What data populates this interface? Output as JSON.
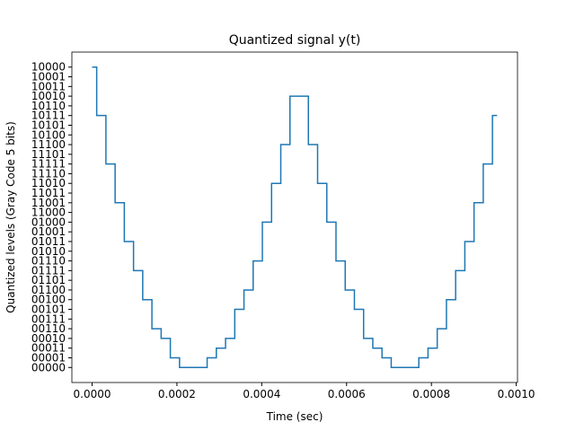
{
  "chart_data": {
    "type": "step",
    "title": "Quantized signal y(t)",
    "xlabel": "Time (sec)",
    "ylabel": "Quantized levels (Gray Code 5 bits)",
    "x": [
      0,
      2.17e-05,
      4.34e-05,
      6.51e-05,
      8.68e-05,
      0.0001085,
      0.0001302,
      0.0001519,
      0.0001736,
      0.0001953,
      0.000217,
      0.0002387,
      0.0002604,
      0.0002821,
      0.0003038,
      0.0003255,
      0.0003472,
      0.0003689,
      0.0003906,
      0.0004123,
      0.000434,
      0.0004557,
      0.0004774,
      0.0004991,
      0.0005208,
      0.0005425,
      0.0005642,
      0.0005859,
      0.0006076,
      0.0006293,
      0.000651,
      0.0006727,
      0.0006944,
      0.0007161,
      0.0007378,
      0.0007595,
      0.0007812,
      0.0008029,
      0.0008246,
      0.0008463,
      0.000868,
      0.0008897,
      0.0009114,
      0.0009331,
      0.0009548
    ],
    "series": [
      {
        "name": "y(t)",
        "color": "#1f77b4",
        "values": [
          31,
          26,
          21,
          17,
          13,
          10,
          7,
          4,
          3,
          1,
          0,
          0,
          0,
          1,
          2,
          3,
          6,
          8,
          11,
          15,
          19,
          23,
          28,
          28,
          23,
          19,
          15,
          11,
          8,
          6,
          3,
          2,
          1,
          0,
          0,
          0,
          1,
          2,
          4,
          7,
          10,
          13,
          17,
          21,
          26
        ]
      }
    ],
    "xlim": [
      -4.77e-05,
      0.001003
    ],
    "ylim": [
      -1.55,
      32.55
    ],
    "xticks": [
      {
        "value": 0,
        "label": "0.0000"
      },
      {
        "value": 0.0002,
        "label": "0.0002"
      },
      {
        "value": 0.0004,
        "label": "0.0004"
      },
      {
        "value": 0.0006,
        "label": "0.0006"
      },
      {
        "value": 0.0008,
        "label": "0.0008"
      },
      {
        "value": 0.001,
        "label": "0.0010"
      }
    ],
    "yticks": [
      {
        "value": 0,
        "label": "00000"
      },
      {
        "value": 1,
        "label": "00001"
      },
      {
        "value": 2,
        "label": "00011"
      },
      {
        "value": 3,
        "label": "00010"
      },
      {
        "value": 4,
        "label": "00110"
      },
      {
        "value": 5,
        "label": "00111"
      },
      {
        "value": 6,
        "label": "00101"
      },
      {
        "value": 7,
        "label": "00100"
      },
      {
        "value": 8,
        "label": "01100"
      },
      {
        "value": 9,
        "label": "01101"
      },
      {
        "value": 10,
        "label": "01111"
      },
      {
        "value": 11,
        "label": "01110"
      },
      {
        "value": 12,
        "label": "01010"
      },
      {
        "value": 13,
        "label": "01011"
      },
      {
        "value": 14,
        "label": "01001"
      },
      {
        "value": 15,
        "label": "01000"
      },
      {
        "value": 16,
        "label": "11000"
      },
      {
        "value": 17,
        "label": "11001"
      },
      {
        "value": 18,
        "label": "11011"
      },
      {
        "value": 19,
        "label": "11010"
      },
      {
        "value": 20,
        "label": "11110"
      },
      {
        "value": 21,
        "label": "11111"
      },
      {
        "value": 22,
        "label": "11101"
      },
      {
        "value": 23,
        "label": "11100"
      },
      {
        "value": 24,
        "label": "10100"
      },
      {
        "value": 25,
        "label": "10101"
      },
      {
        "value": 26,
        "label": "10111"
      },
      {
        "value": 27,
        "label": "10110"
      },
      {
        "value": 28,
        "label": "10010"
      },
      {
        "value": 29,
        "label": "10011"
      },
      {
        "value": 30,
        "label": "10001"
      },
      {
        "value": 31,
        "label": "10000"
      }
    ]
  }
}
